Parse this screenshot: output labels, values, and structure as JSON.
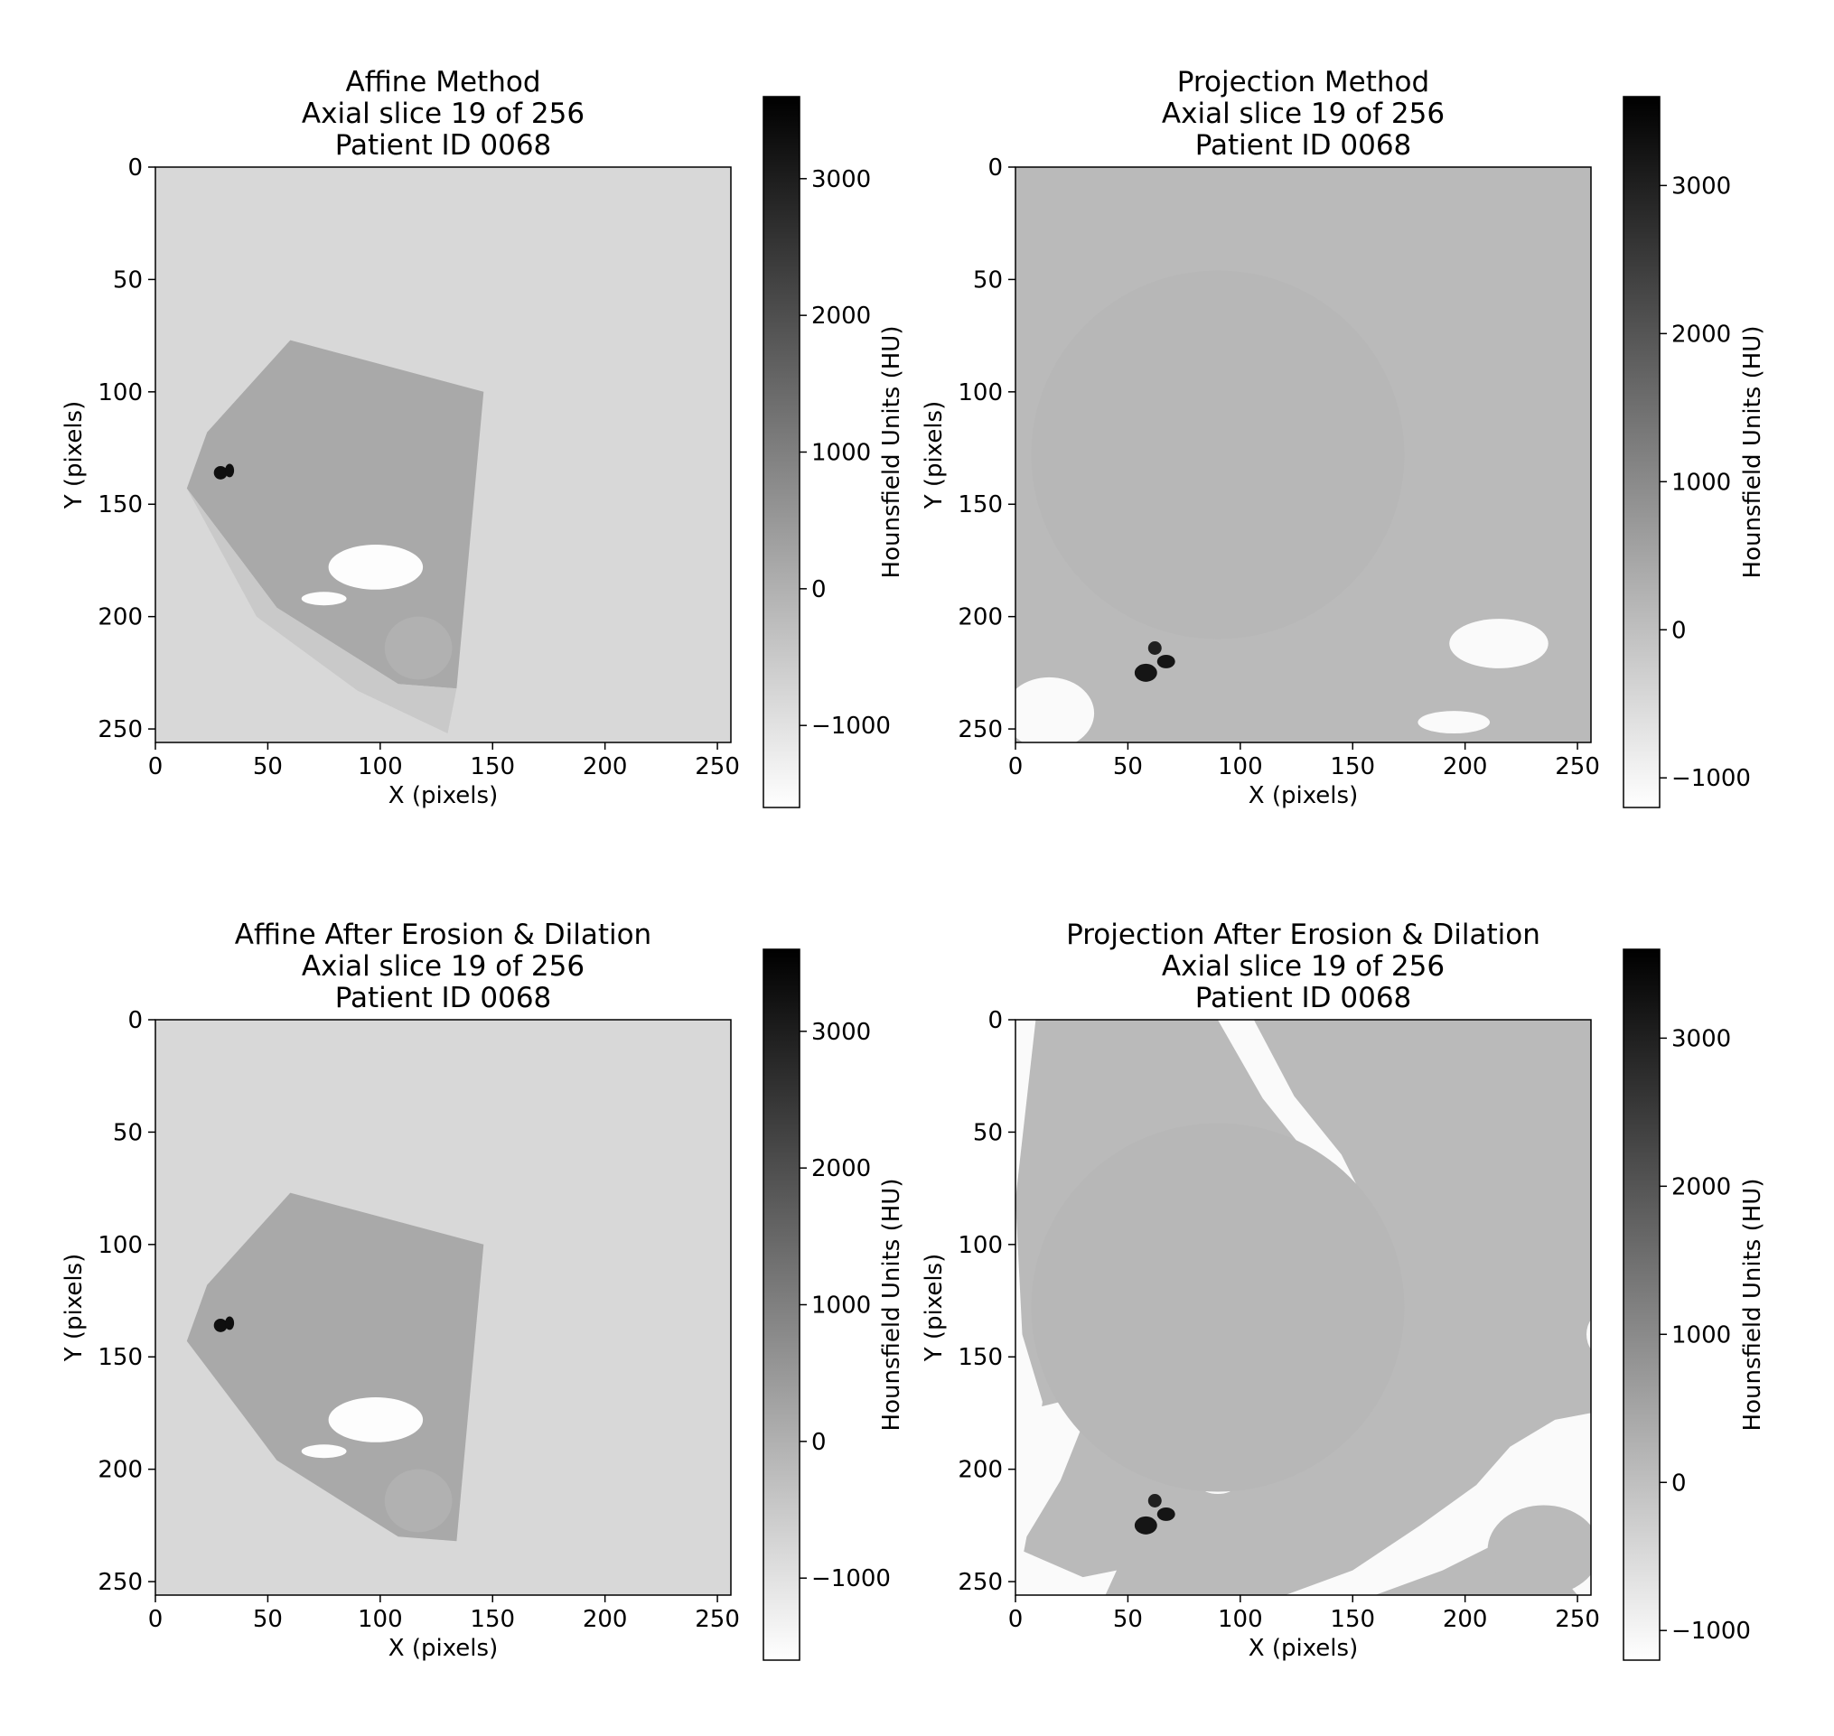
{
  "figure": {
    "axes_labels": {
      "x": "X (pixels)",
      "y": "Y (pixels)",
      "colorbar": "Hounsfield Units (HU)"
    }
  },
  "chart_data": [
    {
      "type": "heatmap",
      "title": [
        "Affine Method",
        "Axial slice 19 of 256",
        "Patient ID 0068"
      ],
      "xlabel": "X (pixels)",
      "ylabel": "Y (pixels)",
      "xlim": [
        0,
        256
      ],
      "ylim": [
        256,
        0
      ],
      "xticks": [
        0,
        50,
        100,
        150,
        200,
        250
      ],
      "yticks": [
        0,
        50,
        100,
        150,
        200,
        250
      ],
      "colorbar": {
        "label": "Hounsfield Units (HU)",
        "min": -1600,
        "max": 3600,
        "ticks": [
          3000,
          2000,
          1000,
          0,
          -1000
        ],
        "colormap": "gray_r"
      },
      "image": {
        "background_hu": -800,
        "regions": [
          {
            "kind": "polygon",
            "hu": 150,
            "points": [
              [
                60,
                77
              ],
              [
                146,
                100
              ],
              [
                134,
                232
              ],
              [
                108,
                230
              ],
              [
                54,
                196
              ],
              [
                39,
                176
              ],
              [
                14,
                143
              ],
              [
                23,
                118
              ]
            ]
          },
          {
            "kind": "polygon",
            "hu": -500,
            "points": [
              [
                14,
                143
              ],
              [
                39,
                176
              ],
              [
                54,
                196
              ],
              [
                108,
                230
              ],
              [
                134,
                232
              ],
              [
                130,
                252
              ],
              [
                90,
                233
              ],
              [
                45,
                200
              ]
            ]
          },
          {
            "kind": "ellipse",
            "hu": -1550,
            "cx": 98,
            "cy": 178,
            "rx": 21,
            "ry": 10
          },
          {
            "kind": "ellipse",
            "hu": -1550,
            "cx": 75,
            "cy": 192,
            "rx": 10,
            "ry": 3
          },
          {
            "kind": "ellipse",
            "hu": 0,
            "cx": 117,
            "cy": 214,
            "rx": 15,
            "ry": 14
          },
          {
            "kind": "ellipse",
            "hu": 3300,
            "cx": 29,
            "cy": 136,
            "rx": 3,
            "ry": 3
          },
          {
            "kind": "ellipse",
            "hu": 3300,
            "cx": 33,
            "cy": 135,
            "rx": 2,
            "ry": 3
          }
        ]
      }
    },
    {
      "type": "heatmap",
      "title": [
        "Projection Method",
        "Axial slice 19 of 256",
        "Patient ID 0068"
      ],
      "xlabel": "X (pixels)",
      "ylabel": "Y (pixels)",
      "xlim": [
        0,
        256
      ],
      "ylim": [
        256,
        0
      ],
      "xticks": [
        0,
        50,
        100,
        150,
        200,
        250
      ],
      "yticks": [
        0,
        50,
        100,
        150,
        200,
        250
      ],
      "colorbar": {
        "label": "Hounsfield Units (HU)",
        "min": -1200,
        "max": 3600,
        "ticks": [
          3000,
          2000,
          1000,
          0,
          -1000
        ],
        "colormap": "gray_r"
      },
      "image": {
        "background_hu": 100,
        "regions": [
          {
            "kind": "ellipse",
            "hu": 160,
            "cx": 90,
            "cy": 128,
            "rx": 83,
            "ry": 82
          },
          {
            "kind": "ellipse",
            "hu": -1100,
            "cx": 215,
            "cy": 212,
            "rx": 22,
            "ry": 11
          },
          {
            "kind": "ellipse",
            "hu": -1100,
            "cx": 15,
            "cy": 243,
            "rx": 20,
            "ry": 16
          },
          {
            "kind": "ellipse",
            "hu": -1100,
            "cx": 195,
            "cy": 247,
            "rx": 16,
            "ry": 5
          },
          {
            "kind": "ellipse",
            "hu": 3200,
            "cx": 58,
            "cy": 225,
            "rx": 5,
            "ry": 4
          },
          {
            "kind": "ellipse",
            "hu": 3200,
            "cx": 67,
            "cy": 220,
            "rx": 4,
            "ry": 3
          },
          {
            "kind": "ellipse",
            "hu": 3000,
            "cx": 62,
            "cy": 214,
            "rx": 3,
            "ry": 3
          }
        ]
      }
    },
    {
      "type": "heatmap",
      "title": [
        "Affine After Erosion & Dilation",
        "Axial slice 19 of 256",
        "Patient ID 0068"
      ],
      "xlabel": "X (pixels)",
      "ylabel": "Y (pixels)",
      "xlim": [
        0,
        256
      ],
      "ylim": [
        256,
        0
      ],
      "xticks": [
        0,
        50,
        100,
        150,
        200,
        250
      ],
      "yticks": [
        0,
        50,
        100,
        150,
        200,
        250
      ],
      "colorbar": {
        "label": "Hounsfield Units (HU)",
        "min": -1600,
        "max": 3600,
        "ticks": [
          3000,
          2000,
          1000,
          0,
          -1000
        ],
        "colormap": "gray_r"
      },
      "image": {
        "background_hu": -800,
        "regions": [
          {
            "kind": "polygon",
            "hu": 150,
            "points": [
              [
                60,
                77
              ],
              [
                146,
                100
              ],
              [
                134,
                232
              ],
              [
                108,
                230
              ],
              [
                54,
                196
              ],
              [
                39,
                176
              ],
              [
                14,
                143
              ],
              [
                23,
                118
              ]
            ]
          },
          {
            "kind": "ellipse",
            "hu": -1550,
            "cx": 98,
            "cy": 178,
            "rx": 21,
            "ry": 10
          },
          {
            "kind": "ellipse",
            "hu": -1550,
            "cx": 75,
            "cy": 192,
            "rx": 10,
            "ry": 3
          },
          {
            "kind": "ellipse",
            "hu": 0,
            "cx": 117,
            "cy": 214,
            "rx": 15,
            "ry": 14
          },
          {
            "kind": "ellipse",
            "hu": 3300,
            "cx": 29,
            "cy": 136,
            "rx": 3,
            "ry": 3
          },
          {
            "kind": "ellipse",
            "hu": 3300,
            "cx": 33,
            "cy": 135,
            "rx": 2,
            "ry": 3
          }
        ]
      }
    },
    {
      "type": "heatmap",
      "title": [
        "Projection After Erosion & Dilation",
        "Axial slice 19 of 256",
        "Patient ID 0068"
      ],
      "xlabel": "X (pixels)",
      "ylabel": "Y (pixels)",
      "xlim": [
        0,
        256
      ],
      "ylim": [
        256,
        0
      ],
      "xticks": [
        0,
        50,
        100,
        150,
        200,
        250
      ],
      "yticks": [
        0,
        50,
        100,
        150,
        200,
        250
      ],
      "colorbar": {
        "label": "Hounsfield Units (HU)",
        "min": -1200,
        "max": 3600,
        "ticks": [
          3000,
          2000,
          1000,
          0,
          -1000
        ],
        "colormap": "gray_r"
      },
      "image": {
        "background_hu": 100,
        "regions": [
          {
            "kind": "polygon",
            "hu": -1100,
            "points": [
              [
                0,
                0
              ],
              [
                9,
                0
              ],
              [
                0,
                80
              ]
            ]
          },
          {
            "kind": "polygon",
            "hu": -1100,
            "points": [
              [
                0,
                80
              ],
              [
                3,
                140
              ],
              [
                12,
                170
              ],
              [
                0,
                256
              ]
            ]
          },
          {
            "kind": "polygon",
            "hu": -1100,
            "points": [
              [
                90,
                0
              ],
              [
                106,
                0
              ],
              [
                124,
                34
              ],
              [
                145,
                60
              ],
              [
                160,
                90
              ],
              [
                162,
                120
              ],
              [
                156,
                126
              ],
              [
                148,
                90
              ],
              [
                130,
                60
              ],
              [
                110,
                35
              ]
            ]
          },
          {
            "kind": "polygon",
            "hu": -1100,
            "points": [
              [
                0,
                175
              ],
              [
                20,
                170
              ],
              [
                30,
                180
              ],
              [
                20,
                205
              ],
              [
                5,
                230
              ],
              [
                0,
                256
              ]
            ]
          },
          {
            "kind": "polygon",
            "hu": -1100,
            "points": [
              [
                256,
                175
              ],
              [
                256,
                256
              ],
              [
                250,
                256
              ],
              [
                228,
                230
              ],
              [
                210,
                235
              ],
              [
                190,
                245
              ],
              [
                160,
                256
              ],
              [
                120,
                256
              ],
              [
                150,
                245
              ],
              [
                180,
                225
              ],
              [
                205,
                207
              ],
              [
                220,
                190
              ],
              [
                240,
                178
              ]
            ]
          },
          {
            "kind": "polygon",
            "hu": -1100,
            "points": [
              [
                0,
                256
              ],
              [
                0,
                235
              ],
              [
                30,
                248
              ],
              [
                45,
                245
              ],
              [
                40,
                256
              ]
            ]
          },
          {
            "kind": "ellipse",
            "hu": 100,
            "cx": 235,
            "cy": 236,
            "rx": 25,
            "ry": 20
          },
          {
            "kind": "ellipse",
            "hu": -1100,
            "cx": 90,
            "cy": 208,
            "rx": 7,
            "ry": 3
          },
          {
            "kind": "ellipse",
            "hu": -1100,
            "cx": 262,
            "cy": 140,
            "rx": 8,
            "ry": 10
          },
          {
            "kind": "ellipse",
            "hu": 160,
            "cx": 90,
            "cy": 128,
            "rx": 83,
            "ry": 82
          },
          {
            "kind": "ellipse",
            "hu": 3200,
            "cx": 58,
            "cy": 225,
            "rx": 5,
            "ry": 4
          },
          {
            "kind": "ellipse",
            "hu": 3200,
            "cx": 67,
            "cy": 220,
            "rx": 4,
            "ry": 3
          },
          {
            "kind": "ellipse",
            "hu": 3000,
            "cx": 62,
            "cy": 214,
            "rx": 3,
            "ry": 3
          }
        ]
      }
    }
  ]
}
